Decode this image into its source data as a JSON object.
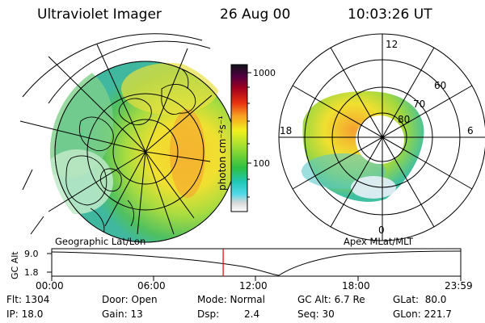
{
  "header": {
    "instrument": "Ultraviolet Imager",
    "date": "26 Aug 00",
    "time": "10:03:26 UT"
  },
  "colorbar": {
    "unit_label": "photon cm⁻²s⁻¹",
    "tick_1000": "1000",
    "tick_100": "100",
    "scale": "log"
  },
  "left_map": {
    "caption": "Geographic Lat/Lon"
  },
  "right_map": {
    "caption": "Apex MLat/MLT",
    "mlt_top": "12",
    "mlt_left": "18",
    "mlt_right": "6",
    "mlt_bottom": "0",
    "lat_60": "60",
    "lat_70": "70",
    "lat_80": "80"
  },
  "altitude_plot": {
    "axis_label": "GC Alt",
    "y_top": "9.0",
    "y_bottom": "1.8",
    "x_ticks": [
      "00:00",
      "06:00",
      "12:00",
      "18:00",
      "23:59"
    ],
    "current_time_hours": 10.06,
    "marker_color": "#e00000"
  },
  "info": {
    "flt": "Flt: 1304",
    "ip": "IP: 18.0",
    "door": "Door: Open",
    "gain": "Gain: 13",
    "mode": "Mode: Normal",
    "dsp_label": "Dsp:",
    "dsp_value": "2.4",
    "gcalt": "GC Alt: 6.7 Re",
    "seq": "Seq: 30",
    "glat": "GLat:  80.0",
    "glon": "GLon: 221.7"
  }
}
